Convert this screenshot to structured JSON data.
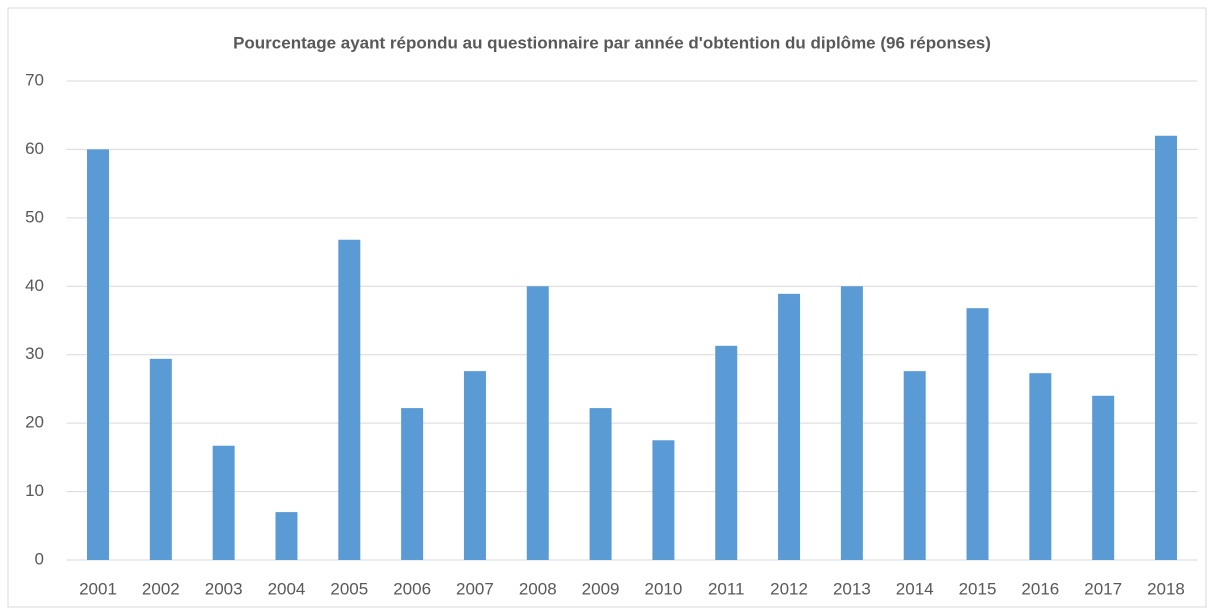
{
  "chart_data": {
    "type": "bar",
    "title": "Pourcentage ayant répondu au questionnaire par année d'obtention du diplôme (96 réponses)",
    "categories": [
      "2001",
      "2002",
      "2003",
      "2004",
      "2005",
      "2006",
      "2007",
      "2008",
      "2009",
      "2010",
      "2011",
      "2012",
      "2013",
      "2014",
      "2015",
      "2016",
      "2017",
      "2018"
    ],
    "values": [
      60,
      29.4,
      16.7,
      7,
      46.8,
      22.2,
      27.6,
      40,
      22.2,
      17.5,
      31.3,
      38.9,
      40,
      27.6,
      36.8,
      27.3,
      24,
      62
    ],
    "color": "#5b9bd5",
    "ylim": [
      0,
      70
    ],
    "yticks": [
      0,
      10,
      20,
      30,
      40,
      50,
      60,
      70
    ],
    "grid": true
  }
}
